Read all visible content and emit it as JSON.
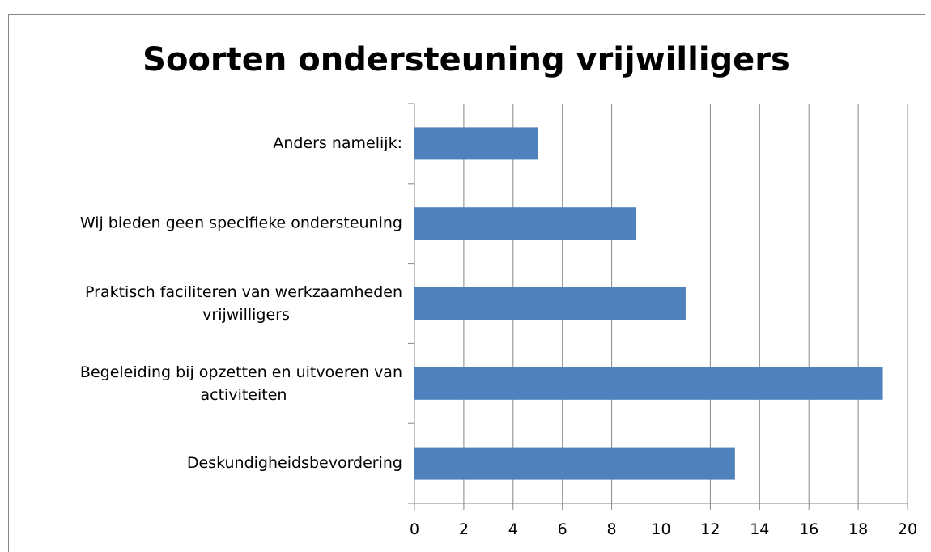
{
  "chart_data": {
    "type": "bar",
    "orientation": "horizontal",
    "title": "Soorten ondersteuning vrijwilligers",
    "categories": [
      "Deskundigheidsbevordering",
      "Begeleiding bij opzetten en uitvoeren van activiteiten",
      "Praktisch faciliteren van werkzaamheden vrijwilligers",
      "Wij bieden geen specifieke ondersteuning",
      "Anders namelijk:"
    ],
    "values": [
      13,
      19,
      11,
      9,
      5
    ],
    "color": "#4f81bd",
    "xlim": [
      0,
      20
    ],
    "xticks": [
      0,
      2,
      4,
      6,
      8,
      10,
      12,
      14,
      16,
      18,
      20
    ],
    "grid": true
  }
}
